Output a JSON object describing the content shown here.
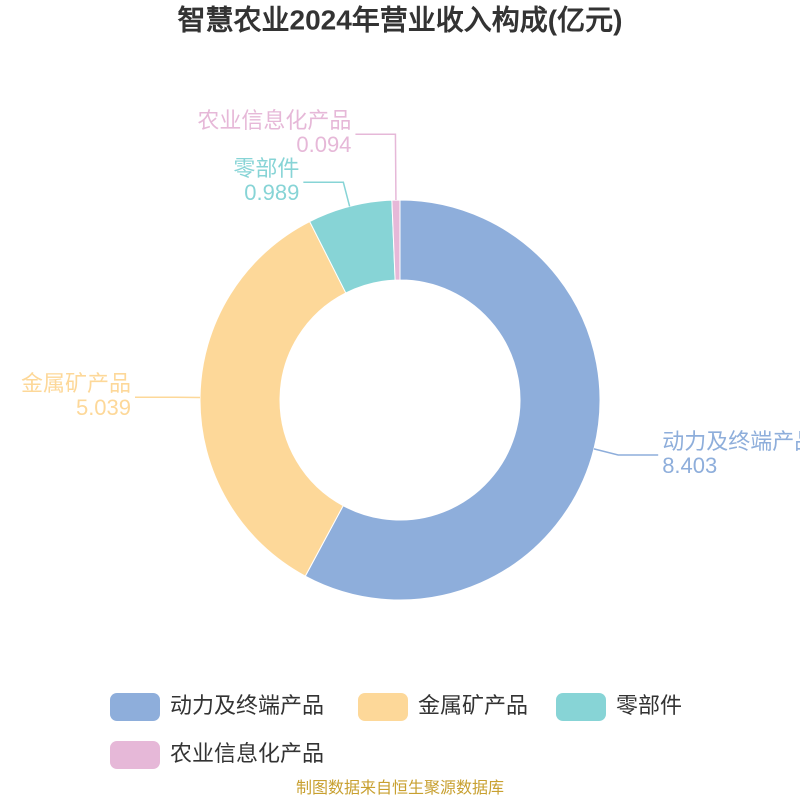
{
  "chart_data": {
    "type": "donut",
    "title": "智慧农业2024年营业收入构成(亿元)",
    "categories": [
      "动力及终端产品",
      "金属矿产品",
      "零部件",
      "农业信息化产品"
    ],
    "values": [
      8.403,
      5.039,
      0.989,
      0.094
    ],
    "colors": [
      "#8eaedb",
      "#fdd899",
      "#87d4d6",
      "#e6b8d8"
    ],
    "source": "制图数据来自恒生聚源数据库"
  }
}
